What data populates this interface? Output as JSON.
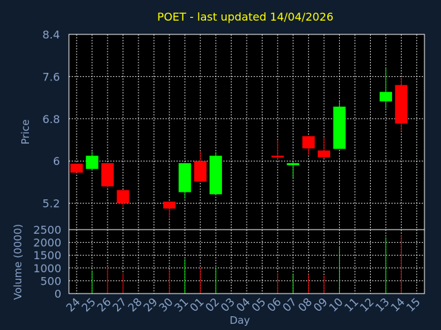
{
  "chart_data": {
    "type": "candlestick",
    "title": "POET - last updated 14/04/2026",
    "xlabel": "Day",
    "ylabel": "Price",
    "volume_label": "Volume (0000)",
    "x_ticks": [
      "24",
      "25",
      "26",
      "27",
      "28",
      "29",
      "30",
      "31",
      "01",
      "02",
      "03",
      "04",
      "05",
      "06",
      "07",
      "08",
      "09",
      "10",
      "11",
      "12",
      "13",
      "14",
      "15"
    ],
    "price_ylim": [
      4.7,
      8.4
    ],
    "price_y_ticks": [
      5.2,
      6.0,
      6.8,
      7.6,
      8.4
    ],
    "price_y_tick_labels": [
      "5.2",
      "6",
      "6.8",
      "7.6",
      "8.4"
    ],
    "volume_ylim": [
      0,
      2500
    ],
    "volume_y_ticks": [
      0,
      500,
      1000,
      1500,
      2000,
      2500
    ],
    "volume_y_tick_labels": [
      "0",
      "500",
      "1000",
      "1500",
      "2000",
      "2500"
    ],
    "grid": true,
    "colors": {
      "up": "#00ff00",
      "down": "#ff0000",
      "background": "#0f1d2e",
      "plot_background": "#000000",
      "grid": "#ffffff",
      "labels": "#8aa2c8",
      "title": "#ffff00"
    },
    "candles": [
      {
        "day": "24",
        "open": 5.95,
        "high": 5.95,
        "low": 5.78,
        "close": 5.78,
        "volume": 0
      },
      {
        "day": "25",
        "open": 5.85,
        "high": 6.18,
        "low": 5.85,
        "close": 6.1,
        "volume": 900
      },
      {
        "day": "26",
        "open": 5.96,
        "high": 5.96,
        "low": 5.5,
        "close": 5.52,
        "volume": 1000
      },
      {
        "day": "27",
        "open": 5.45,
        "high": 5.45,
        "low": 5.13,
        "close": 5.2,
        "volume": 800
      },
      {
        "day": "30",
        "open": 5.23,
        "high": 5.23,
        "low": 4.92,
        "close": 5.1,
        "volume": 950
      },
      {
        "day": "31",
        "open": 5.41,
        "high": 5.96,
        "low": 5.29,
        "close": 5.96,
        "volume": 1350
      },
      {
        "day": "01",
        "open": 6.0,
        "high": 6.19,
        "low": 5.6,
        "close": 5.61,
        "volume": 1000
      },
      {
        "day": "02",
        "open": 5.37,
        "high": 6.17,
        "low": 5.37,
        "close": 6.1,
        "volume": 1000
      },
      {
        "day": "06",
        "open": 6.1,
        "high": 6.4,
        "low": 6.02,
        "close": 6.07,
        "volume": 800
      },
      {
        "day": "07",
        "open": 5.92,
        "high": 5.99,
        "low": 5.68,
        "close": 5.96,
        "volume": 780
      },
      {
        "day": "08",
        "open": 6.47,
        "high": 6.48,
        "low": 6.12,
        "close": 6.24,
        "volume": 750
      },
      {
        "day": "09",
        "open": 6.2,
        "high": 6.45,
        "low": 6.05,
        "close": 6.07,
        "volume": 700
      },
      {
        "day": "10",
        "open": 6.23,
        "high": 7.12,
        "low": 6.23,
        "close": 7.03,
        "volume": 1850
      },
      {
        "day": "13",
        "open": 7.13,
        "high": 7.76,
        "low": 7.0,
        "close": 7.31,
        "volume": 2200
      },
      {
        "day": "14",
        "open": 7.44,
        "high": 7.58,
        "low": 6.56,
        "close": 6.71,
        "volume": 2280
      }
    ]
  }
}
